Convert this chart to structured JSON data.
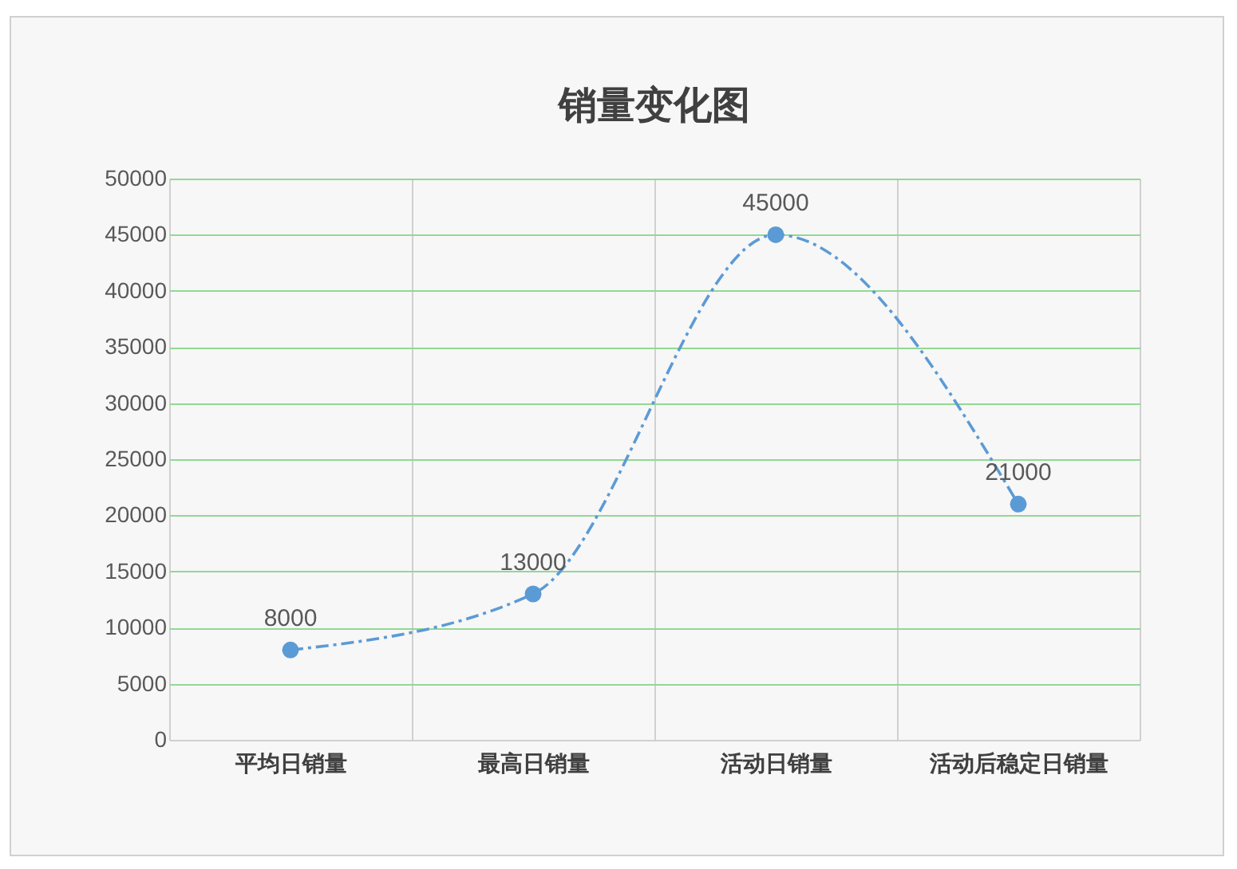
{
  "chart_data": {
    "type": "line",
    "title": "销量变化图",
    "categories": [
      "平均日销量",
      "最高日销量",
      "活动日销量",
      "活动后稳定日销量"
    ],
    "series": [
      {
        "color": "#5b9bd5",
        "values": [
          8000,
          13000,
          45000,
          21000
        ]
      }
    ],
    "ylim": [
      0,
      50000
    ],
    "yticks": [
      0,
      5000,
      10000,
      15000,
      20000,
      25000,
      30000,
      35000,
      40000,
      45000,
      50000
    ],
    "grid": true,
    "marker": "circle",
    "line_style": "dashed",
    "data_labels": true
  }
}
